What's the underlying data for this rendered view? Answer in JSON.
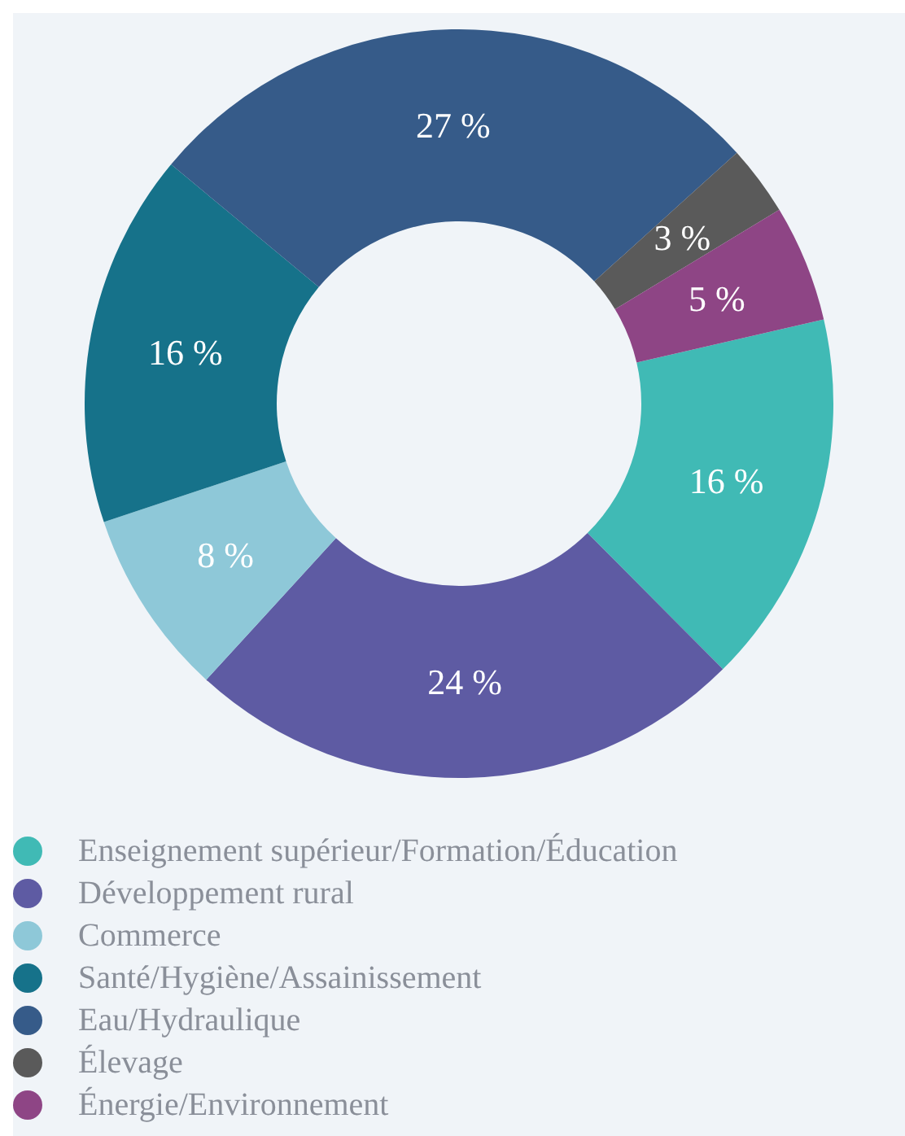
{
  "chart_data": {
    "type": "donut",
    "categories": [
      "Enseignement supérieur/Formation/Éducation",
      "Développement rural",
      "Commerce",
      "Santé/Hygiène/Assainissement",
      "Eau/Hydraulique",
      "Élevage",
      "Énergie/Environnement"
    ],
    "values": [
      16,
      24,
      8,
      16,
      27,
      3,
      5
    ],
    "value_labels": [
      "16 %",
      "24 %",
      "8 %",
      "16 %",
      "27 %",
      "3 %",
      "5 %"
    ],
    "colors": [
      "#40bab5",
      "#5e5ba3",
      "#8ec8d8",
      "#16728a",
      "#365b89",
      "#5a5a5a",
      "#8e4585"
    ],
    "legend": "bottom"
  }
}
